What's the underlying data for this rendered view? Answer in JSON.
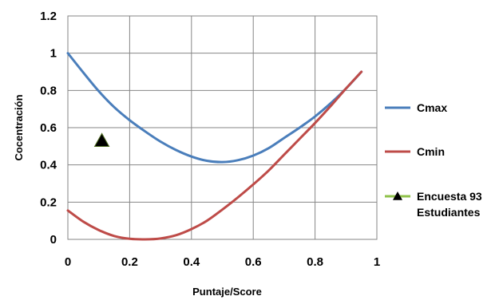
{
  "chart_data": {
    "type": "line",
    "title": "",
    "xlabel": "Puntaje/Score",
    "ylabel": "Cocentración",
    "xlim": [
      0,
      1
    ],
    "ylim": [
      0,
      1.2
    ],
    "x_ticks": [
      "0",
      "0.2",
      "0.4",
      "0.6",
      "0.8",
      "1"
    ],
    "y_ticks": [
      "0",
      "0.2",
      "0.4",
      "0.6",
      "0.8",
      "1",
      "1.2"
    ],
    "grid": true,
    "legend_position": "right",
    "series": [
      {
        "name": "Cmax",
        "color": "#4a7ebb",
        "style": "line",
        "x": [
          0,
          0.05,
          0.1,
          0.15,
          0.2,
          0.25,
          0.3,
          0.35,
          0.4,
          0.45,
          0.5,
          0.55,
          0.6,
          0.65,
          0.7,
          0.75,
          0.8,
          0.85,
          0.9,
          0.95
        ],
        "y": [
          1.0,
          0.896,
          0.796,
          0.71,
          0.64,
          0.58,
          0.525,
          0.48,
          0.445,
          0.422,
          0.415,
          0.425,
          0.45,
          0.49,
          0.545,
          0.6,
          0.66,
          0.73,
          0.81,
          0.9
        ]
      },
      {
        "name": "Cmin",
        "color": "#be4b48",
        "style": "line",
        "x": [
          0,
          0.05,
          0.1,
          0.15,
          0.2,
          0.25,
          0.3,
          0.35,
          0.4,
          0.45,
          0.5,
          0.55,
          0.6,
          0.65,
          0.7,
          0.75,
          0.8,
          0.85,
          0.9,
          0.95
        ],
        "y": [
          0.155,
          0.095,
          0.05,
          0.018,
          0.003,
          0.0,
          0.005,
          0.022,
          0.055,
          0.1,
          0.16,
          0.225,
          0.295,
          0.37,
          0.455,
          0.54,
          0.625,
          0.715,
          0.81,
          0.9
        ]
      },
      {
        "name": "Encuesta 93 Estudiantes",
        "legend_lines": [
          "Encuesta 93",
          "Estudiantes"
        ],
        "color": "#000000",
        "legend_line_color": "#8fc24a",
        "style": "marker-triangle",
        "x": [
          0.11
        ],
        "y": [
          0.53
        ]
      }
    ]
  }
}
